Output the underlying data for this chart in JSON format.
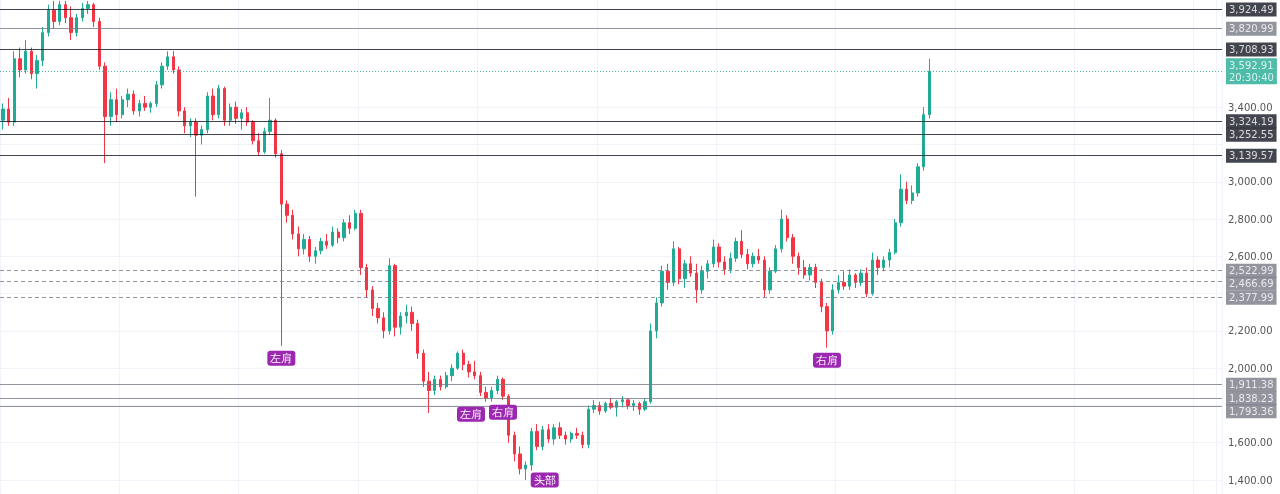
{
  "chart_data": {
    "type": "candlestick",
    "categories": [
      null,
      null,
      null,
      null,
      null,
      null,
      null,
      null,
      null,
      null,
      null,
      null,
      null,
      null,
      null,
      null,
      null,
      null,
      null,
      null,
      null,
      null,
      null,
      null,
      null,
      null,
      null,
      null,
      null,
      null,
      null,
      null,
      null,
      null,
      null,
      null,
      null,
      null,
      null,
      null,
      null,
      null,
      null,
      null,
      null,
      null,
      null,
      null,
      null,
      null,
      null,
      null,
      null,
      null,
      null,
      null,
      null,
      null,
      null,
      null,
      null,
      null,
      null,
      null,
      null,
      null,
      null,
      null,
      null,
      null,
      null,
      null,
      null,
      null,
      null,
      null,
      null,
      null,
      null,
      null,
      null,
      null,
      null,
      null,
      null,
      null,
      null,
      null,
      null,
      null,
      null,
      null,
      null,
      null,
      null,
      null,
      null,
      null,
      null,
      null,
      null,
      null,
      null,
      null,
      null,
      null,
      null,
      null,
      null,
      null,
      null,
      null,
      null,
      null,
      null,
      null,
      null,
      null,
      null,
      null,
      null,
      null,
      null,
      null,
      null,
      null,
      null,
      null,
      null,
      null,
      null,
      null,
      null,
      null,
      null,
      null,
      null,
      null,
      null,
      null,
      null,
      null,
      null,
      null,
      null,
      null,
      null,
      null,
      null,
      null,
      null,
      null,
      null,
      null,
      null,
      null,
      null,
      null,
      null,
      null,
      null,
      null,
      null,
      null,
      null,
      null,
      null,
      null,
      null,
      null,
      null,
      null,
      null,
      null,
      null,
      null,
      null,
      null,
      null,
      null,
      null,
      null,
      null,
      null,
      null,
      null,
      null,
      null,
      null,
      null,
      null,
      null,
      null,
      null,
      null,
      null,
      null,
      null,
      null,
      null,
      null,
      null,
      null,
      null,
      null,
      null,
      null,
      null,
      null,
      null,
      null,
      null,
      null,
      null,
      null
    ],
    "ohlc": [
      [
        3330,
        3420,
        3280,
        3390
      ],
      [
        3390,
        3450,
        3300,
        3320
      ],
      [
        3320,
        3700,
        3300,
        3660
      ],
      [
        3660,
        3720,
        3560,
        3600
      ],
      [
        3600,
        3760,
        3580,
        3700
      ],
      [
        3700,
        3720,
        3550,
        3580
      ],
      [
        3580,
        3680,
        3500,
        3650
      ],
      [
        3650,
        3830,
        3620,
        3800
      ],
      [
        3800,
        3950,
        3780,
        3920
      ],
      [
        3920,
        3970,
        3820,
        3860
      ],
      [
        3860,
        3970,
        3840,
        3950
      ],
      [
        3950,
        3970,
        3850,
        3880
      ],
      [
        3880,
        3940,
        3760,
        3800
      ],
      [
        3800,
        3900,
        3780,
        3880
      ],
      [
        3880,
        3960,
        3860,
        3930
      ],
      [
        3930,
        3970,
        3900,
        3950
      ],
      [
        3950,
        3960,
        3830,
        3860
      ],
      [
        3860,
        3880,
        3600,
        3620
      ],
      [
        3620,
        3640,
        3100,
        3350
      ],
      [
        3350,
        3480,
        3300,
        3440
      ],
      [
        3440,
        3500,
        3320,
        3360
      ],
      [
        3360,
        3460,
        3340,
        3440
      ],
      [
        3440,
        3500,
        3400,
        3470
      ],
      [
        3470,
        3490,
        3360,
        3380
      ],
      [
        3380,
        3440,
        3350,
        3420
      ],
      [
        3420,
        3460,
        3380,
        3400
      ],
      [
        3400,
        3430,
        3370,
        3420
      ],
      [
        3420,
        3540,
        3400,
        3520
      ],
      [
        3520,
        3640,
        3500,
        3620
      ],
      [
        3620,
        3700,
        3600,
        3670
      ],
      [
        3670,
        3700,
        3580,
        3600
      ],
      [
        3600,
        3620,
        3350,
        3380
      ],
      [
        3380,
        3400,
        3260,
        3300
      ],
      [
        3300,
        3340,
        3240,
        3320
      ],
      [
        3320,
        3340,
        2920,
        3250
      ],
      [
        3250,
        3300,
        3200,
        3280
      ],
      [
        3280,
        3480,
        3260,
        3460
      ],
      [
        3460,
        3500,
        3330,
        3360
      ],
      [
        3360,
        3520,
        3340,
        3500
      ],
      [
        3500,
        3510,
        3300,
        3330
      ],
      [
        3330,
        3420,
        3300,
        3400
      ],
      [
        3400,
        3430,
        3310,
        3340
      ],
      [
        3340,
        3390,
        3280,
        3370
      ],
      [
        3370,
        3400,
        3300,
        3320
      ],
      [
        3320,
        3330,
        3200,
        3220
      ],
      [
        3220,
        3260,
        3140,
        3160
      ],
      [
        3160,
        3290,
        3150,
        3270
      ],
      [
        3270,
        3450,
        3250,
        3330
      ],
      [
        3330,
        3340,
        3130,
        3150
      ],
      [
        3150,
        3170,
        2120,
        2880
      ],
      [
        2880,
        2900,
        2780,
        2820
      ],
      [
        2820,
        2850,
        2690,
        2720
      ],
      [
        2720,
        2760,
        2600,
        2640
      ],
      [
        2640,
        2720,
        2610,
        2690
      ],
      [
        2690,
        2710,
        2570,
        2600
      ],
      [
        2600,
        2650,
        2560,
        2630
      ],
      [
        2630,
        2700,
        2610,
        2680
      ],
      [
        2680,
        2720,
        2640,
        2660
      ],
      [
        2660,
        2760,
        2650,
        2730
      ],
      [
        2730,
        2750,
        2670,
        2700
      ],
      [
        2700,
        2800,
        2680,
        2780
      ],
      [
        2780,
        2820,
        2720,
        2750
      ],
      [
        2750,
        2850,
        2740,
        2830
      ],
      [
        2830,
        2850,
        2500,
        2540
      ],
      [
        2540,
        2560,
        2380,
        2420
      ],
      [
        2420,
        2440,
        2280,
        2320
      ],
      [
        2320,
        2350,
        2240,
        2270
      ],
      [
        2270,
        2300,
        2160,
        2200
      ],
      [
        2200,
        2590,
        2180,
        2550
      ],
      [
        2550,
        2560,
        2170,
        2220
      ],
      [
        2220,
        2300,
        2180,
        2280
      ],
      [
        2280,
        2340,
        2240,
        2300
      ],
      [
        2300,
        2330,
        2200,
        2240
      ],
      [
        2240,
        2260,
        2050,
        2080
      ],
      [
        2080,
        2100,
        1900,
        1930
      ],
      [
        1930,
        1980,
        1760,
        1880
      ],
      [
        1880,
        1960,
        1855,
        1940
      ],
      [
        1940,
        1960,
        1880,
        1900
      ],
      [
        1900,
        1980,
        1890,
        1960
      ],
      [
        1960,
        2020,
        1930,
        2000
      ],
      [
        2000,
        2090,
        1990,
        2080
      ],
      [
        2080,
        2100,
        1990,
        2020
      ],
      [
        2020,
        2040,
        1950,
        1980
      ],
      [
        1980,
        2040,
        1940,
        1960
      ],
      [
        1960,
        1980,
        1850,
        1870
      ],
      [
        1870,
        1900,
        1820,
        1840
      ],
      [
        1840,
        1900,
        1820,
        1880
      ],
      [
        1880,
        1960,
        1860,
        1940
      ],
      [
        1940,
        1950,
        1830,
        1850
      ],
      [
        1850,
        1860,
        1600,
        1640
      ],
      [
        1640,
        1660,
        1500,
        1540
      ],
      [
        1540,
        1580,
        1430,
        1460
      ],
      [
        1460,
        1500,
        1400,
        1480
      ],
      [
        1480,
        1680,
        1450,
        1660
      ],
      [
        1660,
        1700,
        1560,
        1580
      ],
      [
        1580,
        1690,
        1560,
        1670
      ],
      [
        1670,
        1700,
        1600,
        1620
      ],
      [
        1620,
        1700,
        1590,
        1680
      ],
      [
        1680,
        1710,
        1620,
        1640
      ],
      [
        1640,
        1660,
        1590,
        1620
      ],
      [
        1620,
        1660,
        1600,
        1650
      ],
      [
        1650,
        1680,
        1620,
        1640
      ],
      [
        1640,
        1660,
        1570,
        1590
      ],
      [
        1590,
        1800,
        1570,
        1780
      ],
      [
        1780,
        1830,
        1760,
        1800
      ],
      [
        1800,
        1820,
        1750,
        1770
      ],
      [
        1770,
        1820,
        1760,
        1810
      ],
      [
        1810,
        1840,
        1780,
        1790
      ],
      [
        1790,
        1830,
        1740,
        1820
      ],
      [
        1820,
        1850,
        1790,
        1830
      ],
      [
        1830,
        1840,
        1780,
        1800
      ],
      [
        1800,
        1830,
        1770,
        1810
      ],
      [
        1810,
        1820,
        1750,
        1780
      ],
      [
        1780,
        1840,
        1770,
        1820
      ],
      [
        1820,
        2240,
        1810,
        2200
      ],
      [
        2200,
        2380,
        2160,
        2350
      ],
      [
        2350,
        2550,
        2330,
        2520
      ],
      [
        2520,
        2560,
        2420,
        2460
      ],
      [
        2460,
        2680,
        2440,
        2640
      ],
      [
        2640,
        2650,
        2450,
        2480
      ],
      [
        2480,
        2580,
        2430,
        2560
      ],
      [
        2560,
        2600,
        2490,
        2510
      ],
      [
        2510,
        2560,
        2350,
        2420
      ],
      [
        2420,
        2550,
        2400,
        2520
      ],
      [
        2520,
        2580,
        2480,
        2560
      ],
      [
        2560,
        2690,
        2540,
        2650
      ],
      [
        2650,
        2670,
        2540,
        2570
      ],
      [
        2570,
        2600,
        2500,
        2530
      ],
      [
        2530,
        2620,
        2510,
        2590
      ],
      [
        2590,
        2700,
        2570,
        2680
      ],
      [
        2680,
        2740,
        2590,
        2610
      ],
      [
        2610,
        2640,
        2530,
        2560
      ],
      [
        2560,
        2620,
        2540,
        2600
      ],
      [
        2600,
        2640,
        2560,
        2580
      ],
      [
        2580,
        2600,
        2380,
        2420
      ],
      [
        2420,
        2540,
        2400,
        2520
      ],
      [
        2520,
        2660,
        2510,
        2640
      ],
      [
        2640,
        2850,
        2620,
        2800
      ],
      [
        2800,
        2820,
        2680,
        2700
      ],
      [
        2700,
        2720,
        2560,
        2600
      ],
      [
        2600,
        2620,
        2500,
        2540
      ],
      [
        2540,
        2580,
        2480,
        2500
      ],
      [
        2500,
        2560,
        2470,
        2540
      ],
      [
        2540,
        2560,
        2430,
        2460
      ],
      [
        2460,
        2480,
        2300,
        2330
      ],
      [
        2330,
        2350,
        2110,
        2200
      ],
      [
        2200,
        2450,
        2180,
        2420
      ],
      [
        2420,
        2500,
        2400,
        2460
      ],
      [
        2460,
        2520,
        2420,
        2440
      ],
      [
        2440,
        2530,
        2420,
        2500
      ],
      [
        2500,
        2510,
        2430,
        2460
      ],
      [
        2460,
        2530,
        2440,
        2510
      ],
      [
        2510,
        2540,
        2380,
        2400
      ],
      [
        2400,
        2620,
        2390,
        2580
      ],
      [
        2580,
        2600,
        2500,
        2540
      ],
      [
        2540,
        2600,
        2520,
        2580
      ],
      [
        2580,
        2640,
        2540,
        2620
      ],
      [
        2620,
        2800,
        2610,
        2780
      ],
      [
        2780,
        3040,
        2760,
        2960
      ],
      [
        2960,
        3000,
        2880,
        2900
      ],
      [
        2900,
        2980,
        2880,
        2940
      ],
      [
        2940,
        3100,
        2920,
        3080
      ],
      [
        3080,
        3400,
        3060,
        3360
      ],
      [
        3360,
        3660,
        3340,
        3592.91
      ],
      null,
      null,
      null,
      null,
      null,
      null,
      null,
      null,
      null,
      null,
      null,
      null,
      null,
      null,
      null,
      null,
      null,
      null,
      null,
      null,
      null,
      null,
      null,
      null,
      null,
      null,
      null,
      null,
      null,
      null,
      null,
      null,
      null,
      null,
      null,
      null,
      null,
      null,
      null,
      null,
      null,
      null,
      null,
      null,
      null,
      null,
      null,
      null,
      null,
      null,
      null
    ],
    "colors": [
      "#22ab94",
      "#f23645",
      "#22ab94",
      "#f23645",
      "#22ab94",
      "#f23645",
      "#22ab94",
      "#22ab94",
      "#22ab94",
      "#f23645",
      "#22ab94",
      "#f23645",
      "#f23645",
      "#22ab94",
      "#22ab94",
      "#22ab94",
      "#f23645",
      "#f23645",
      "#f23645",
      "#22ab94",
      "#f23645",
      "#22ab94",
      "#22ab94",
      "#f23645",
      "#22ab94",
      "#f23645",
      "#22ab94",
      "#22ab94",
      "#22ab94",
      "#22ab94",
      "#f23645",
      "#f23645",
      "#f23645",
      "#22ab94",
      "#f23645",
      "#22ab94",
      "#22ab94",
      "#f23645",
      "#22ab94",
      "#f23645",
      "#22ab94",
      "#f23645",
      "#22ab94",
      "#f23645",
      "#f23645",
      "#f23645",
      "#22ab94",
      "#22ab94",
      "#f23645",
      "#f23645",
      "#f23645",
      "#f23645",
      "#f23645",
      "#22ab94",
      "#f23645",
      "#22ab94",
      "#22ab94",
      "#f23645",
      "#22ab94",
      "#f23645",
      "#22ab94",
      "#f23645",
      "#22ab94",
      "#f23645",
      "#f23645",
      "#f23645",
      "#f23645",
      "#f23645",
      "#22ab94",
      "#f23645",
      "#22ab94",
      "#22ab94",
      "#f23645",
      "#f23645",
      "#f23645",
      "#f23645",
      "#22ab94",
      "#f23645",
      "#22ab94",
      "#22ab94",
      "#22ab94",
      "#f23645",
      "#f23645",
      "#f23645",
      "#f23645",
      "#f23645",
      "#22ab94",
      "#22ab94",
      "#f23645",
      "#f23645",
      "#f23645",
      "#f23645",
      "#22ab94",
      "#22ab94",
      "#f23645",
      "#22ab94",
      "#f23645",
      "#22ab94",
      "#f23645",
      "#f23645",
      "#22ab94",
      "#f23645",
      "#f23645",
      "#22ab94",
      "#22ab94",
      "#f23645",
      "#22ab94",
      "#f23645",
      "#22ab94",
      "#22ab94",
      "#f23645",
      "#22ab94",
      "#f23645",
      "#22ab94",
      "#22ab94",
      "#22ab94",
      "#22ab94",
      "#f23645",
      "#22ab94",
      "#f23645",
      "#22ab94",
      "#f23645",
      "#f23645",
      "#22ab94",
      "#22ab94",
      "#22ab94",
      "#f23645",
      "#f23645",
      "#22ab94",
      "#22ab94",
      "#f23645",
      "#f23645",
      "#22ab94",
      "#f23645",
      "#f23645",
      "#22ab94",
      "#22ab94",
      "#22ab94",
      "#f23645",
      "#f23645",
      "#f23645",
      "#f23645",
      "#22ab94",
      "#f23645",
      "#f23645",
      "#f23645",
      "#22ab94",
      "#22ab94",
      "#f23645",
      "#22ab94",
      "#f23645",
      "#22ab94",
      "#f23645",
      "#22ab94",
      "#f23645",
      "#22ab94",
      "#22ab94",
      "#22ab94",
      "#22ab94",
      "#f23645",
      "#22ab94",
      "#22ab94",
      "#22ab94",
      "#22ab94",
      null,
      null,
      null,
      null,
      null,
      null,
      null,
      null,
      null,
      null,
      null,
      null,
      null,
      null,
      null,
      null,
      null,
      null,
      null,
      null,
      null,
      null,
      null,
      null,
      null,
      null,
      null,
      null,
      null,
      null,
      null,
      null,
      null,
      null,
      null,
      null,
      null,
      null,
      null,
      null,
      null,
      null,
      null,
      null,
      null,
      null,
      null,
      null,
      null,
      null,
      null
    ],
    "ylim": [
      1325,
      3975
    ],
    "yticks": [
      {
        "value": 1400,
        "label": "1,400.00"
      },
      {
        "value": 1600,
        "label": "1,600.00"
      },
      {
        "value": 1800,
        "label": null
      },
      {
        "value": 2000,
        "label": "2,000.00"
      },
      {
        "value": 2200,
        "label": "2,200.00"
      },
      {
        "value": 2400,
        "label": null
      },
      {
        "value": 2600,
        "label": "2,600.00"
      },
      {
        "value": 2800,
        "label": "2,800.00"
      },
      {
        "value": 3000,
        "label": "3,000.00"
      },
      {
        "value": 3200,
        "label": null
      },
      {
        "value": 3400,
        "label": "3,400.00"
      }
    ],
    "ref_lines": [
      {
        "axis": "y",
        "value": 3924.49,
        "label": "3,924.49",
        "color": "#131722"
      },
      {
        "axis": "y",
        "value": 3820.99,
        "label": "3,820.99",
        "color": "#787b86"
      },
      {
        "axis": "y",
        "value": 3708.93,
        "label": "3,708.93",
        "color": "#131722"
      },
      {
        "axis": "y",
        "value": 3592.91,
        "label": "3,592.91\n20:30:40",
        "color": "#22ab94",
        "line_style": "dotted"
      },
      {
        "axis": "y",
        "value": 3324.19,
        "label": "3,324.19",
        "color": "#131722"
      },
      {
        "axis": "y",
        "value": 3252.55,
        "label": "3,252.55",
        "color": "#131722"
      },
      {
        "axis": "y",
        "value": 3139.57,
        "label": "3,139.57",
        "color": "#131722"
      },
      {
        "axis": "y",
        "value": 2522.99,
        "label": "2,522.99",
        "color": "#787b86",
        "line_style": "dashed"
      },
      {
        "axis": "y",
        "value": 2466.69,
        "label": "2,466.69",
        "color": "#787b86",
        "line_style": "dashed"
      },
      {
        "axis": "y",
        "value": 2377.99,
        "label": "2,377.99",
        "color": "#787b86",
        "line_style": "dashed"
      },
      {
        "axis": "y",
        "value": 1911.38,
        "label": "1,911.38",
        "color": "#787b86"
      },
      {
        "axis": "y",
        "value": 1838.23,
        "label": "1,838.23",
        "color": "#787b86"
      },
      {
        "axis": "y",
        "value": 1793.36,
        "label": "1,793.36",
        "color": "#787b86"
      }
    ],
    "annotations": [
      {
        "text": "左肩",
        "y": 2120
      },
      {
        "text": "左肩",
        "y": 1820
      },
      {
        "text": "右肩",
        "y": 1830
      },
      {
        "text": "头部",
        "y": 1400
      },
      {
        "text": "右肩",
        "y": 2110
      }
    ],
    "grid": true,
    "tick_labels": "y"
  }
}
